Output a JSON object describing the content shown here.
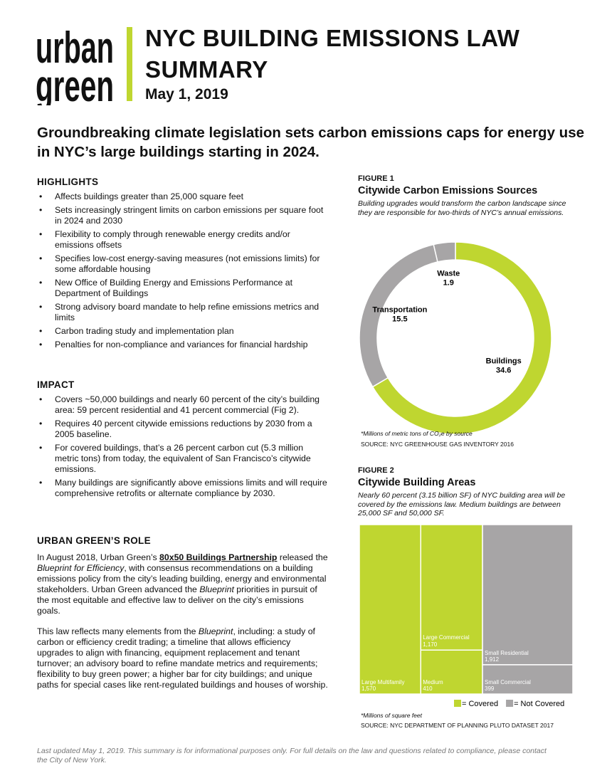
{
  "logo": [
    "urban",
    "green"
  ],
  "title": "NYC BUILDING EMISSIONS LAW SUMMARY",
  "date": "May 1, 2019",
  "headline": "Groundbreaking climate legislation sets carbon emissions caps for energy use in NYC’s large buildings starting in 2024.",
  "highlights": {
    "heading": "HIGHLIGHTS",
    "items": [
      "Affects buildings greater than 25,000 square feet",
      "Sets increasingly stringent limits on carbon emissions per square foot in 2024 and 2030",
      "Flexibility to comply through renewable energy credits and/or emissions offsets",
      "Specifies low-cost energy-saving measures (not emissions limits) for some affordable housing",
      "New Office of Building Energy and Emissions Performance at Department of Buildings",
      "Strong advisory board mandate to help refine emissions metrics and limits",
      "Carbon trading study and implementation plan",
      "Penalties for non-compliance and variances for financial hardship"
    ]
  },
  "impact": {
    "heading": "IMPACT",
    "items": [
      "Covers ~50,000 buildings and nearly 60 percent of the city’s building area: 59 percent residential and 41 percent commercial (Fig 2).",
      "Requires 40 percent citywide emissions reductions by 2030 from a 2005 baseline.",
      "For covered buildings, that’s a 26 percent carbon cut (5.3 million metric tons) from today, the equivalent of San Francisco’s citywide emissions.",
      "Many buildings are significantly above emissions limits and will require comprehensive retrofits or alternate compliance by 2030."
    ]
  },
  "role": {
    "heading": "URBAN GREEN’S ROLE",
    "paragraphs": [
      [
        {
          "text": "In August 2018, Urban Green’s "
        },
        {
          "text": "80x50 Buildings Partnership",
          "link": true
        },
        {
          "text": " released the "
        },
        {
          "text": "Blueprint for Efficiency",
          "italic": true
        },
        {
          "text": ", with consensus recommendations on a building emissions policy from the city’s leading building, energy and environmental stakeholders. Urban Green advanced the "
        },
        {
          "text": "Blueprint",
          "italic": true
        },
        {
          "text": " priorities in pursuit of the most equitable and effective law to deliver on the city’s emissions goals."
        }
      ],
      [
        {
          "text": "This law reflects many elements from the "
        },
        {
          "text": "Blueprint",
          "italic": true
        },
        {
          "text": ", including: a study of carbon or efficiency credit trading; a timeline that allows efficiency upgrades to align with financing, equipment replacement and tenant turnover; an advisory board to refine mandate metrics and requirements; flexibility to buy green power; a higher bar for city buildings; and unique paths for special cases like rent-regulated buildings and houses of worship."
        }
      ]
    ]
  },
  "footer": "Last updated May 1, 2019. This summary is for informational purposes only. For full details on the law and questions related to compliance, please contact the City of New York.",
  "chart_data": [
    {
      "type": "donut",
      "label": "FIGURE 1",
      "title": "Citywide Carbon Emissions Sources",
      "subtitle": "Building upgrades would transform the carbon landscape since they are responsible for two-thirds of NYC’s annual emissions.",
      "categories": [
        "Buildings",
        "Transportation",
        "Waste"
      ],
      "values": [
        34.6,
        15.5,
        1.9
      ],
      "colors": [
        "#bfd630",
        "#a7a5a6",
        "#a7a5a6"
      ],
      "footnote": "*Millions of metric tons of CO₂e by source",
      "source": "SOURCE: NYC GREENHOUSE GAS INVENTORY 2016"
    },
    {
      "type": "treemap",
      "label": "FIGURE 2",
      "title": "Citywide Building Areas",
      "subtitle": "Nearly 60 percent (3.15 billion SF) of NYC building area will be covered by the emissions law. Medium buildings are between 25,000 SF and 50,000 SF.",
      "categories": [
        "Large Multifamily",
        "Large Commercial",
        "Medium",
        "Small Residential",
        "Small Commercial"
      ],
      "values": [
        1570,
        1170,
        410,
        1912,
        399
      ],
      "value_labels": [
        "1,570",
        "1,170",
        "410",
        "1,912",
        "399"
      ],
      "colors": [
        "#bfd630",
        "#bfd630",
        "#bfd630",
        "#a7a5a6",
        "#a7a5a6"
      ],
      "legend": [
        {
          "label": "= Covered",
          "color": "#bfd630"
        },
        {
          "label": "= Not Covered",
          "color": "#a7a5a6"
        }
      ],
      "footnote": "*Millions of square feet",
      "source": "SOURCE: NYC DEPARTMENT OF PLANNING PLUTO DATASET 2017"
    }
  ]
}
